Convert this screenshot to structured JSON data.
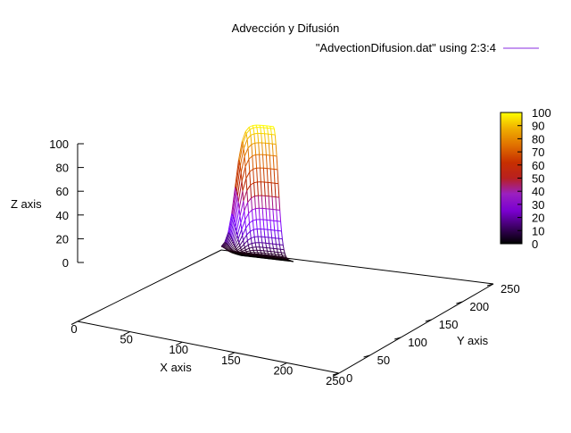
{
  "chart_data": {
    "type": "surface",
    "title": "Advección y Difusión",
    "legend_label": "\"AdvectionDifusion.dat\" using 2:3:4",
    "xlabel": "X axis",
    "ylabel": "Y axis",
    "zlabel": "Z axis",
    "xlim": [
      0,
      250
    ],
    "ylim": [
      0,
      250
    ],
    "zlim": [
      0,
      100
    ],
    "x_ticks": [
      "0",
      "50",
      "100",
      "150",
      "200",
      "250"
    ],
    "y_ticks": [
      "0",
      "50",
      "100",
      "150",
      "200",
      "250"
    ],
    "z_ticks": [
      "0",
      "20",
      "40",
      "60",
      "80",
      "100"
    ],
    "colorbar_ticks": [
      "0",
      "10",
      "20",
      "30",
      "40",
      "50",
      "60",
      "70",
      "80",
      "90",
      "100"
    ],
    "colorbar_range": [
      0,
      100
    ],
    "palette": "gnuplot default (black-purple-red-orange-yellow)",
    "surface": {
      "grid_x_range": [
        0,
        25
      ],
      "grid_y_range": [
        0,
        15
      ],
      "peak_value": 100,
      "description_values": {
        "step_front_x": 0,
        "step_height": 100,
        "diffusion_width": 8
      }
    },
    "grid": false,
    "legend_position": "top-right"
  }
}
